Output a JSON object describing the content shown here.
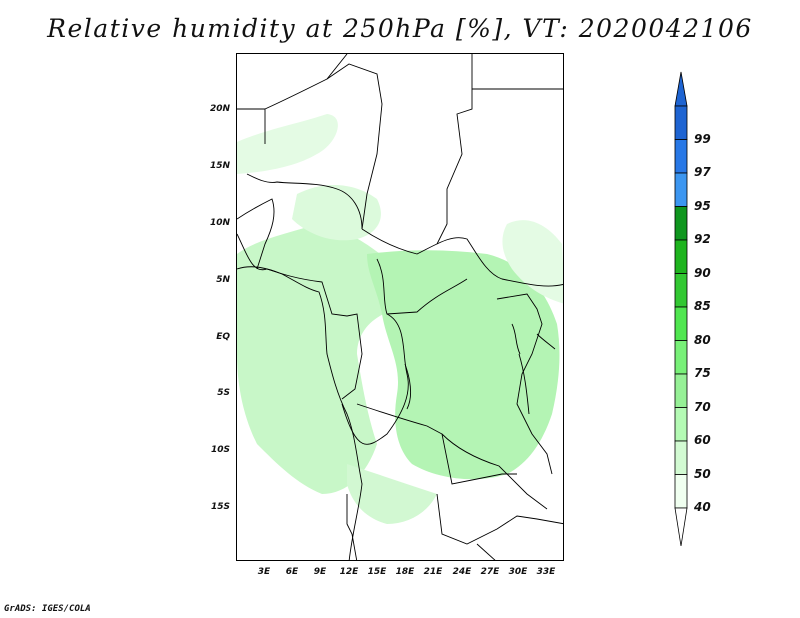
{
  "title": "Relative humidity at 250hPa [%], VT: 2020042106",
  "credit": "GrADS: IGES/COLA",
  "lat_labels": [
    "20N",
    "15N",
    "10N",
    "5N",
    "EQ",
    "5S",
    "10S",
    "15S"
  ],
  "lon_labels": [
    "3E",
    "6E",
    "9E",
    "12E",
    "15E",
    "18E",
    "21E",
    "24E",
    "27E",
    "30E",
    "33E"
  ],
  "colorbar": {
    "labels": [
      "99",
      "97",
      "95",
      "92",
      "90",
      "85",
      "80",
      "75",
      "70",
      "60",
      "50",
      "40"
    ],
    "colors": [
      "#1e64d2",
      "#2878e6",
      "#3c96f0",
      "#0f961e",
      "#1eb41e",
      "#32c832",
      "#50e650",
      "#78f078",
      "#96f096",
      "#b4fab4",
      "#d2fad2",
      "#f0fff0"
    ]
  }
}
